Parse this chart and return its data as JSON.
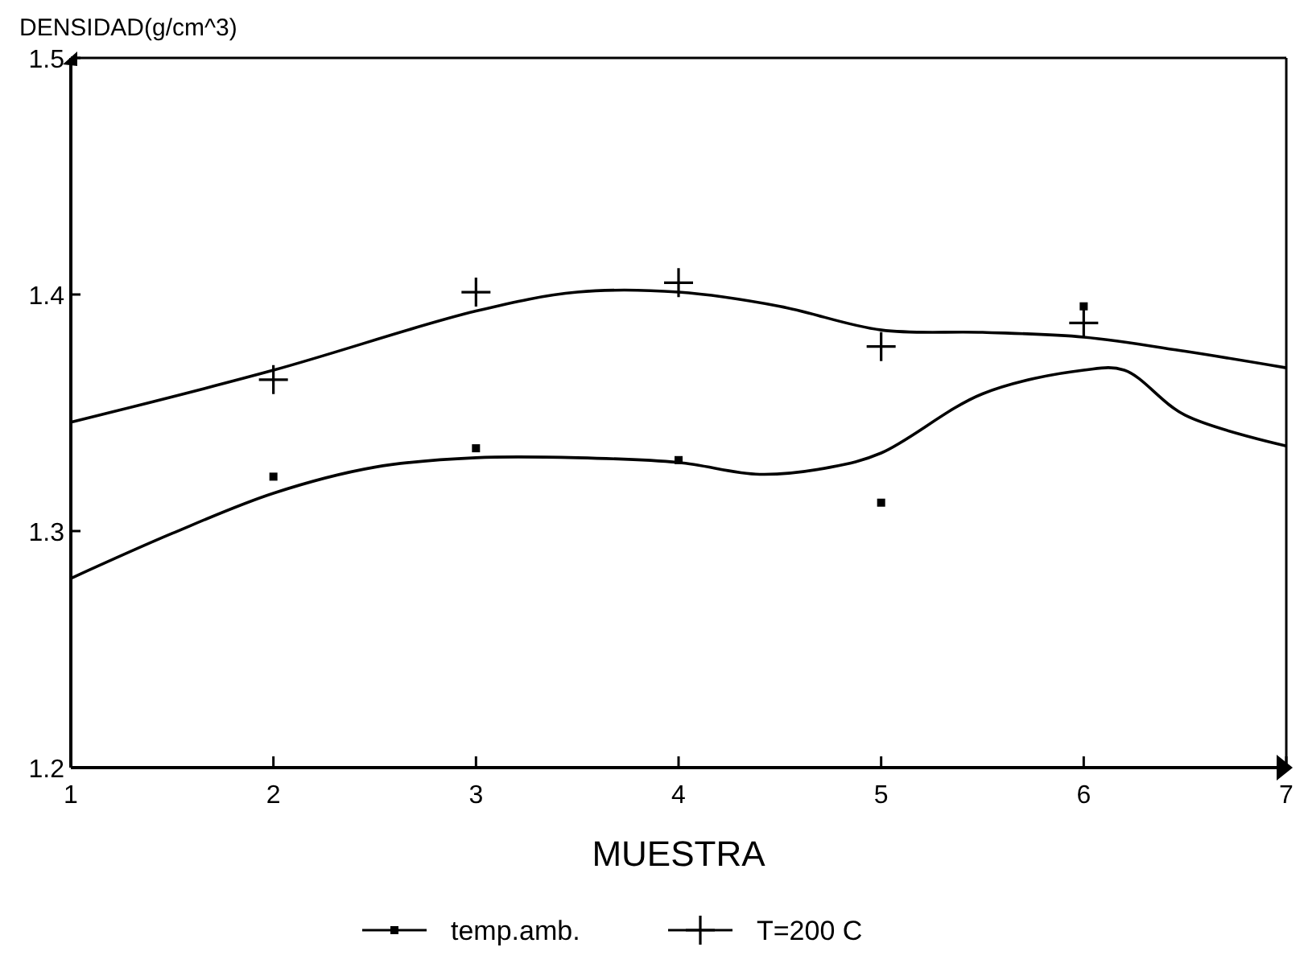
{
  "chart_data": {
    "type": "scatter",
    "ylabel": "DENSIDAD(g/cm^3)",
    "xlabel": "MUESTRA",
    "xlim": [
      1,
      7
    ],
    "xticks": [
      1,
      2,
      3,
      4,
      5,
      6,
      7
    ],
    "ylim": [
      1.2,
      1.5
    ],
    "yticks": [
      1.2,
      1.3,
      1.4,
      1.5
    ],
    "legend": "bottom",
    "series": [
      {
        "name": "temp.amb.",
        "marker": "square",
        "color": "#000000",
        "x": [
          2,
          3,
          4,
          5,
          6
        ],
        "values": [
          1.323,
          1.335,
          1.33,
          1.312,
          1.395
        ]
      },
      {
        "name": "T=200 C",
        "marker": "cross",
        "color": "#000000",
        "x": [
          2,
          3,
          4,
          5,
          6
        ],
        "values": [
          1.364,
          1.401,
          1.405,
          1.378,
          1.388
        ]
      },
      {
        "type": "line",
        "marker": "none",
        "color": "#000000",
        "x": [
          1,
          1.5,
          2,
          2.5,
          3,
          3.5,
          4,
          4.4,
          4.75,
          5,
          5.5,
          6,
          6.2,
          6.5,
          7
        ],
        "values": [
          1.28,
          1.299,
          1.316,
          1.327,
          1.331,
          1.331,
          1.329,
          1.324,
          1.327,
          1.333,
          1.358,
          1.368,
          1.368,
          1.349,
          1.336
        ]
      },
      {
        "type": "line",
        "marker": "none",
        "color": "#000000",
        "x": [
          1,
          2,
          3,
          3.5,
          4,
          4.5,
          5,
          5.5,
          6,
          6.5,
          7
        ],
        "values": [
          1.346,
          1.368,
          1.393,
          1.401,
          1.401,
          1.395,
          1.385,
          1.384,
          1.382,
          1.376,
          1.369
        ]
      }
    ]
  }
}
